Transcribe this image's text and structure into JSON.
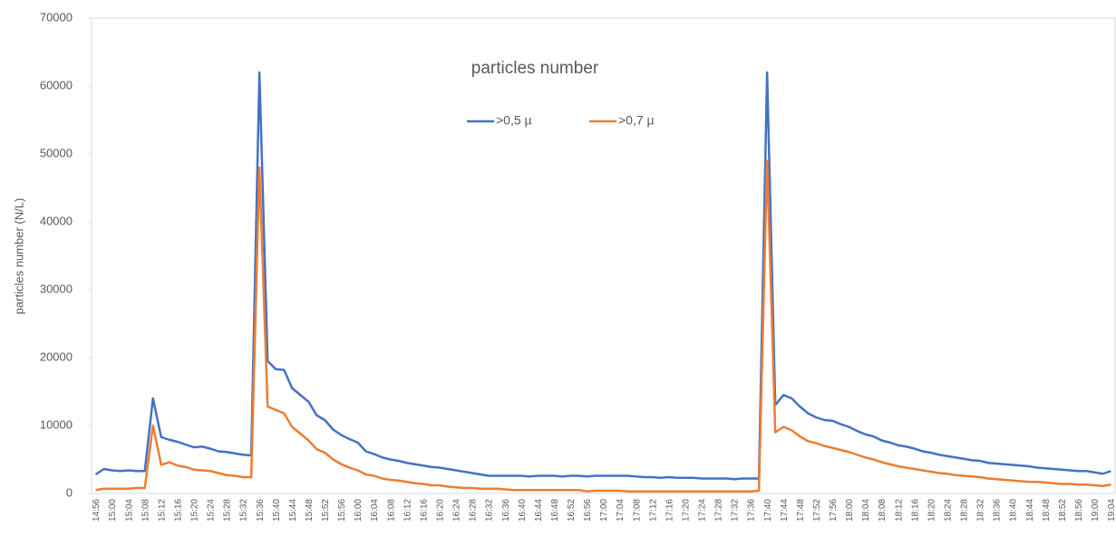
{
  "chart_data": {
    "type": "line",
    "title": "particles number",
    "y_label": "particles number (N/L)",
    "categories": [
      "14:56",
      null,
      "15:00",
      null,
      "15:04",
      null,
      "15:08",
      null,
      "15:12",
      null,
      "15:16",
      null,
      "15:20",
      null,
      "15:24",
      null,
      "15:28",
      null,
      "15:32",
      null,
      "15:36",
      null,
      "15:40",
      null,
      "15:44",
      null,
      "15:48",
      null,
      "15:52",
      null,
      "15:56",
      null,
      "16:00",
      null,
      "16:04",
      null,
      "16:08",
      null,
      "16:12",
      null,
      "16:16",
      null,
      "16:20",
      null,
      "16:24",
      null,
      "16:28",
      null,
      "16:32",
      null,
      "16:36",
      null,
      "16:40",
      null,
      "16:44",
      null,
      "16:48",
      null,
      "16:52",
      null,
      "16:56",
      null,
      "17:00",
      null,
      "17:04",
      null,
      "17:08",
      null,
      "17:12",
      null,
      "17:16",
      null,
      "17:20",
      null,
      "17:24",
      null,
      "17:28",
      null,
      "17:32",
      null,
      "17:36",
      null,
      "17:40",
      null,
      "17:44",
      null,
      "17:48",
      null,
      "17:52",
      null,
      "17:56",
      null,
      "18:00",
      null,
      "18:04",
      null,
      "18:08",
      null,
      "18:12",
      null,
      "18:16",
      null,
      "18:20",
      null,
      "18:24",
      null,
      "18:28",
      null,
      "18:32",
      null,
      "18:36",
      null,
      "18:40",
      null,
      "18:44",
      null,
      "18:48",
      null,
      "18:52",
      null,
      "18:56",
      null,
      "19:00",
      null,
      "19:04"
    ],
    "series": [
      {
        "name": ">0,5 µ",
        "color": "#4472c4",
        "values": [
          2800,
          3600,
          3400,
          3300,
          3400,
          3300,
          3300,
          14000,
          8300,
          7900,
          7600,
          7200,
          6800,
          6900,
          6600,
          6200,
          6100,
          5900,
          5700,
          5600,
          62000,
          19500,
          18300,
          18200,
          15500,
          14500,
          13500,
          11500,
          10800,
          9400,
          8600,
          8000,
          7500,
          6200,
          5800,
          5300,
          5000,
          4800,
          4500,
          4300,
          4100,
          3900,
          3800,
          3600,
          3400,
          3200,
          3000,
          2800,
          2600,
          2600,
          2600,
          2600,
          2600,
          2500,
          2600,
          2600,
          2600,
          2500,
          2600,
          2600,
          2500,
          2600,
          2600,
          2600,
          2600,
          2600,
          2500,
          2400,
          2400,
          2300,
          2400,
          2300,
          2300,
          2300,
          2200,
          2200,
          2200,
          2200,
          2100,
          2200,
          2200,
          2200,
          62000,
          13000,
          14500,
          14000,
          12800,
          11800,
          11200,
          10800,
          10700,
          10200,
          9800,
          9200,
          8700,
          8400,
          7800,
          7500,
          7100,
          6900,
          6600,
          6200,
          6000,
          5700,
          5500,
          5300,
          5100,
          4900,
          4800,
          4500,
          4400,
          4300,
          4200,
          4100,
          4000,
          3800,
          3700,
          3600,
          3500,
          3400,
          3300,
          3300,
          3100,
          2900,
          3300
        ]
      },
      {
        "name": ">0,7 µ",
        "color": "#ed7d31",
        "values": [
          500,
          700,
          700,
          700,
          700,
          800,
          800,
          10000,
          4200,
          4600,
          4100,
          3900,
          3500,
          3400,
          3300,
          3000,
          2700,
          2600,
          2400,
          2400,
          48000,
          12800,
          12300,
          11800,
          9800,
          8800,
          7800,
          6500,
          6000,
          5000,
          4300,
          3800,
          3400,
          2800,
          2600,
          2200,
          2000,
          1900,
          1700,
          1500,
          1400,
          1200,
          1200,
          1000,
          900,
          800,
          800,
          700,
          700,
          700,
          600,
          500,
          500,
          500,
          500,
          500,
          500,
          500,
          500,
          500,
          300,
          400,
          400,
          400,
          400,
          300,
          300,
          300,
          300,
          300,
          300,
          300,
          300,
          300,
          300,
          300,
          300,
          300,
          300,
          300,
          300,
          400,
          49000,
          9000,
          9800,
          9300,
          8400,
          7700,
          7400,
          7000,
          6700,
          6400,
          6100,
          5700,
          5300,
          5000,
          4600,
          4300,
          4000,
          3800,
          3600,
          3400,
          3200,
          3000,
          2900,
          2700,
          2600,
          2500,
          2400,
          2200,
          2100,
          2000,
          1900,
          1800,
          1700,
          1700,
          1600,
          1500,
          1400,
          1400,
          1300,
          1300,
          1200,
          1100,
          1300
        ]
      }
    ],
    "ylim": [
      0,
      70000
    ],
    "yticks": [
      0,
      10000,
      20000,
      30000,
      40000,
      50000,
      60000,
      70000
    ]
  }
}
